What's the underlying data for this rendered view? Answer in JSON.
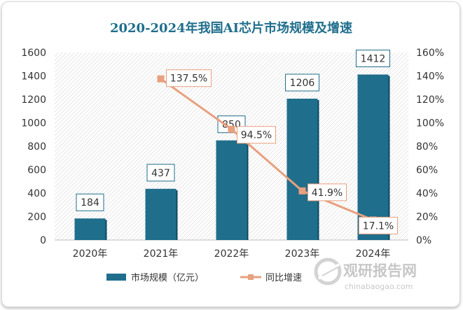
{
  "chart_data": {
    "type": "bar",
    "title": "2020-2024年我国AI芯片市场规模及增速",
    "categories": [
      "2020年",
      "2021年",
      "2022年",
      "2023年",
      "2024年"
    ],
    "series": [
      {
        "name": "市场规模（亿元）",
        "type": "bar",
        "axis": "left",
        "values": [
          184,
          437,
          850,
          1206,
          1412
        ],
        "labels": [
          "184",
          "437",
          "850",
          "1206",
          "1412"
        ]
      },
      {
        "name": "同比增速",
        "type": "line",
        "axis": "right",
        "values": [
          null,
          137.5,
          94.5,
          41.9,
          17.1
        ],
        "labels": [
          "",
          "137.5%",
          "94.5%",
          "41.9%",
          "17.1%"
        ]
      }
    ],
    "ylim_left": [
      0,
      1600
    ],
    "ylim_right": [
      0,
      160
    ],
    "yticks_left": [
      "0",
      "200",
      "400",
      "600",
      "800",
      "1000",
      "1200",
      "1400",
      "1600"
    ],
    "yticks_right": [
      "0%",
      "20%",
      "40%",
      "60%",
      "80%",
      "100%",
      "120%",
      "140%",
      "160%"
    ],
    "legend_position": "bottom",
    "colors": {
      "bar": "#1f6e8c",
      "line": "#e8a07e",
      "title": "#1f6e8c",
      "plot_bg_hatch": "#d6d6d6",
      "text": "#333333"
    }
  },
  "watermark": {
    "brand": "观研报告网",
    "url": "chinabaogao.com"
  }
}
